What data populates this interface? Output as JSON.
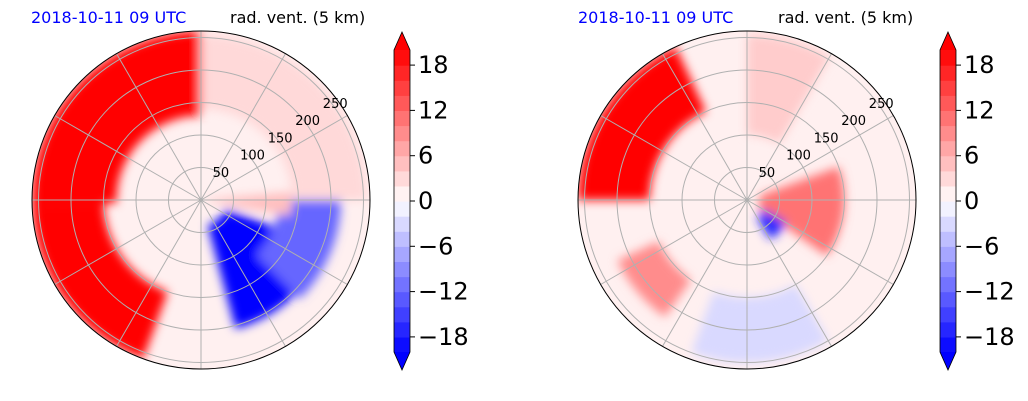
{
  "panels": [
    {
      "date_title": "2018-10-11 09 UTC",
      "var_title": "rad. vent. (5 km)"
    },
    {
      "date_title": "2018-10-11 09 UTC",
      "var_title": "rad. vent. (5 km)"
    }
  ],
  "chart_data": {
    "type": "heatmap",
    "projection": "polar",
    "range_rings": [
      50,
      100,
      150,
      200,
      250
    ],
    "range_ring_labels": [
      "50",
      "100",
      "150",
      "200",
      "250"
    ],
    "radial_spokes_deg": [
      0,
      30,
      60,
      90,
      120,
      150,
      180,
      210,
      240,
      270,
      300,
      330
    ],
    "colorbar": {
      "vmin": -20,
      "vmax": 20,
      "step": 2,
      "extend": "both",
      "ticks": [
        18,
        12,
        6,
        0,
        -6,
        -12,
        -18
      ],
      "tick_labels": [
        "18",
        "12",
        "6",
        "0",
        "−6",
        "−12",
        "−18"
      ],
      "low_color": "#0000ff",
      "mid_color": "#ffffff",
      "high_color": "#ff0000"
    },
    "panels": [
      {
        "description_values": "radial velocity field; strong positive west sector, negative southeast",
        "regions": [
          {
            "az": [
              268,
              360
            ],
            "r": [
              130,
              260
            ],
            "value": 20
          },
          {
            "az": [
              200,
              268
            ],
            "r": [
              150,
              260
            ],
            "value": 20
          },
          {
            "az": [
              110,
              165
            ],
            "r": [
              40,
              205
            ],
            "value": -20
          },
          {
            "az": [
              90,
              135
            ],
            "r": [
              120,
              215
            ],
            "value": -12
          },
          {
            "az": [
              85,
              100
            ],
            "r": [
              5,
              140
            ],
            "value": 5
          },
          {
            "az": [
              0,
              90
            ],
            "r": [
              140,
              255
            ],
            "value": 3
          }
        ]
      },
      {
        "description_values": "radial velocity field; strong positive northwest edge, positive couplet east",
        "regions": [
          {
            "az": [
              270,
              335
            ],
            "r": [
              150,
              260
            ],
            "value": 20
          },
          {
            "az": [
              70,
              125
            ],
            "r": [
              20,
              150
            ],
            "value": 11
          },
          {
            "az": [
              120,
              150
            ],
            "r": [
              30,
              70
            ],
            "value": -17
          },
          {
            "az": [
              215,
              245
            ],
            "r": [
              150,
              220
            ],
            "value": 9
          },
          {
            "az": [
              0,
              30
            ],
            "r": [
              100,
              255
            ],
            "value": 4
          },
          {
            "az": [
              150,
              200
            ],
            "r": [
              150,
              250
            ],
            "value": -3
          }
        ]
      }
    ]
  }
}
